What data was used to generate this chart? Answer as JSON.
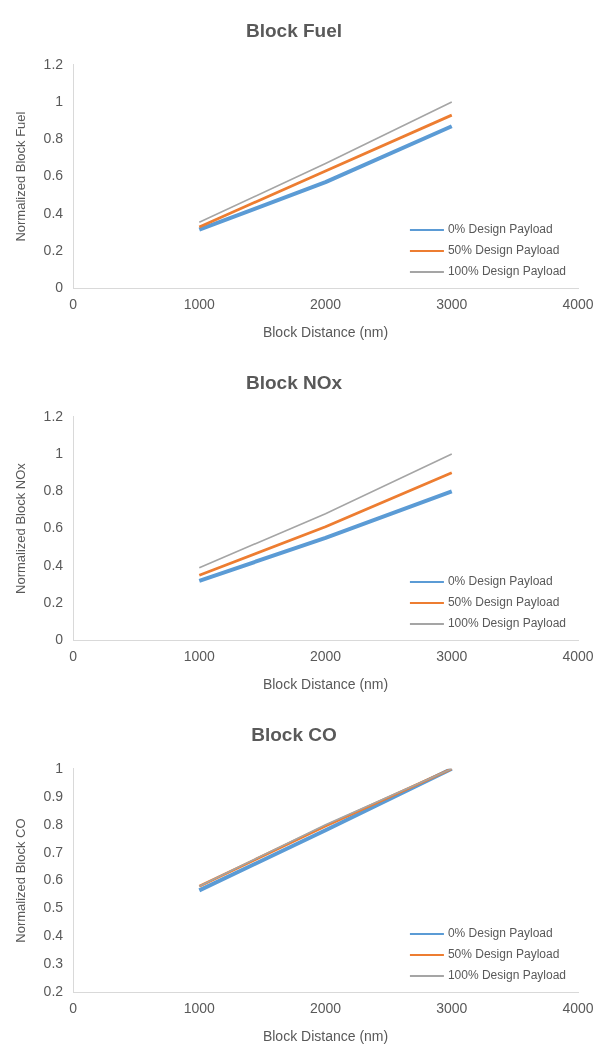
{
  "chart_data": [
    {
      "type": "line",
      "title": "Block Fuel",
      "xlabel": "Block Distance (nm)",
      "ylabel": "Normalized Block Fuel",
      "x": [
        1000,
        2000,
        3000
      ],
      "xlim": [
        0,
        4000
      ],
      "xticks": [
        0,
        1000,
        2000,
        3000,
        4000
      ],
      "ylim": [
        0,
        1.2
      ],
      "yticks": [
        0,
        0.2,
        0.4,
        0.6,
        0.8,
        1,
        1.2
      ],
      "grid": false,
      "legend": "bottom right",
      "marker": "none",
      "line_style": "solid",
      "series": [
        {
          "name": "0% Design Payload",
          "color": "#5b9bd5",
          "values": [
            0.315,
            0.57,
            0.87
          ]
        },
        {
          "name": "50% Design Payload",
          "color": "#ed7d31",
          "values": [
            0.33,
            0.63,
            0.93
          ]
        },
        {
          "name": "100% Design Payload",
          "color": "#a5a5a5",
          "values": [
            0.355,
            0.67,
            1.0
          ]
        }
      ]
    },
    {
      "type": "line",
      "title": "Block NOx",
      "xlabel": "Block Distance (nm)",
      "ylabel": "Normalized Block NOx",
      "x": [
        1000,
        2000,
        3000
      ],
      "xlim": [
        0,
        4000
      ],
      "xticks": [
        0,
        1000,
        2000,
        3000,
        4000
      ],
      "ylim": [
        0,
        1.2
      ],
      "yticks": [
        0,
        0.2,
        0.4,
        0.6,
        0.8,
        1,
        1.2
      ],
      "grid": false,
      "legend": "bottom right",
      "marker": "none",
      "line_style": "solid",
      "series": [
        {
          "name": "0% Design Payload",
          "color": "#5b9bd5",
          "values": [
            0.32,
            0.55,
            0.8
          ]
        },
        {
          "name": "50% Design Payload",
          "color": "#ed7d31",
          "values": [
            0.35,
            0.61,
            0.9
          ]
        },
        {
          "name": "100% Design Payload",
          "color": "#a5a5a5",
          "values": [
            0.39,
            0.68,
            1.0
          ]
        }
      ]
    },
    {
      "type": "line",
      "title": "Block CO",
      "xlabel": "Block Distance (nm)",
      "ylabel": "Normalized Block CO",
      "x": [
        1000,
        2000,
        3000
      ],
      "xlim": [
        0,
        4000
      ],
      "xticks": [
        0,
        1000,
        2000,
        3000,
        4000
      ],
      "ylim": [
        0.2,
        1
      ],
      "yticks": [
        0.2,
        0.3,
        0.4,
        0.5,
        0.6,
        0.7,
        0.8,
        0.9,
        1
      ],
      "grid": false,
      "legend": "bottom right",
      "marker": "none",
      "line_style": "solid",
      "series": [
        {
          "name": "0% Design Payload",
          "color": "#5b9bd5",
          "values": [
            0.565,
            0.78,
            1.0
          ]
        },
        {
          "name": "50% Design Payload",
          "color": "#ed7d31",
          "values": [
            0.58,
            0.795,
            1.0
          ]
        },
        {
          "name": "100% Design Payload",
          "color": "#a5a5a5",
          "values": [
            0.58,
            0.8,
            1.0
          ]
        }
      ]
    }
  ]
}
